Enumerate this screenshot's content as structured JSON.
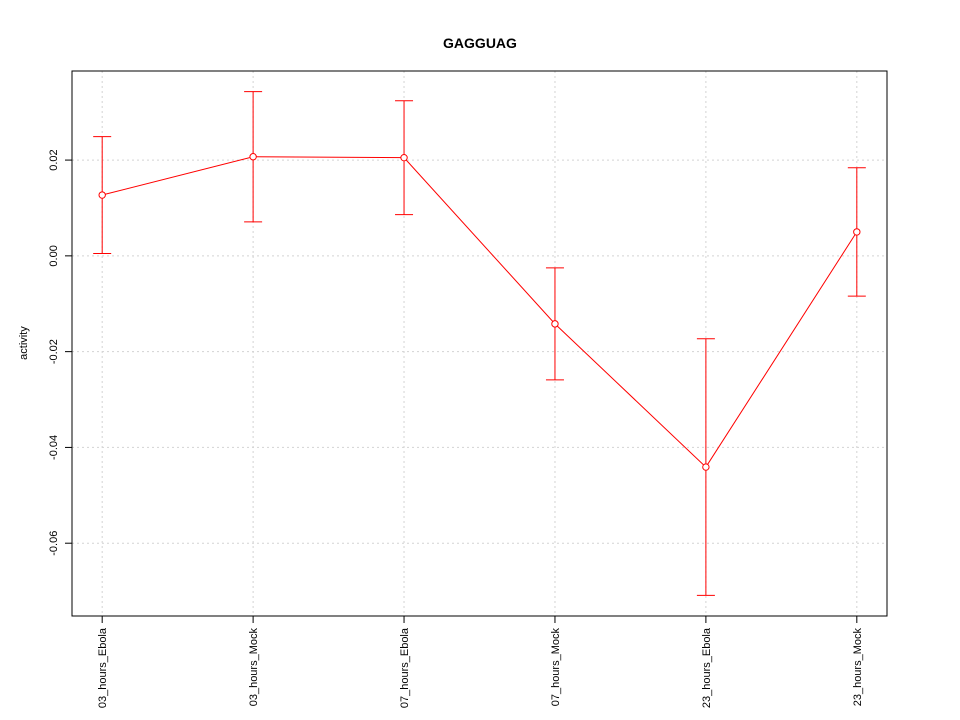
{
  "chart_data": {
    "type": "line",
    "title": "GAGGUAG",
    "y_label": "activity",
    "categories": [
      "03_hours_Ebola",
      "03_hours_Mock",
      "07_hours_Ebola",
      "07_hours_Mock",
      "23_hours_Ebola",
      "23_hours_Mock"
    ],
    "values": [
      0.0127,
      0.0207,
      0.0205,
      -0.0142,
      -0.0441,
      0.005
    ],
    "errors": [
      0.0122,
      0.0136,
      0.0119,
      0.0117,
      0.0268,
      0.0134
    ],
    "color": "#ff0000",
    "ylim": [
      -0.0752,
      0.0386
    ],
    "yticks": [
      -0.06,
      -0.04,
      -0.02,
      {
        "value": 0,
        "label": "0.00"
      },
      0.02
    ],
    "grid": true
  }
}
